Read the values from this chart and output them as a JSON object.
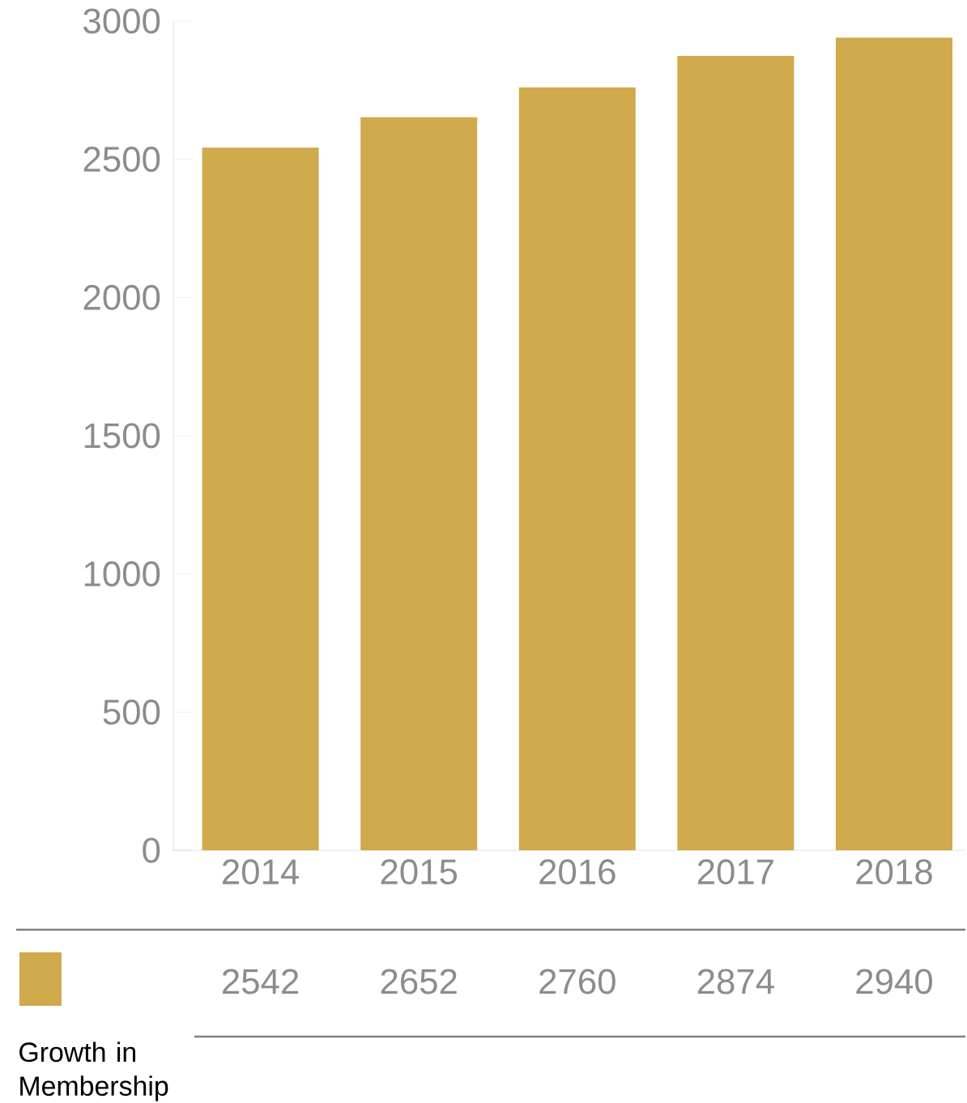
{
  "chart_data": {
    "type": "bar",
    "categories": [
      "2014",
      "2015",
      "2016",
      "2017",
      "2018"
    ],
    "series": [
      {
        "name": "Growth in Membership",
        "color": "#d0a94c",
        "values": [
          2542,
          2652,
          2760,
          2874,
          2940
        ]
      }
    ],
    "ylim": [
      0,
      3000
    ],
    "yticks": [
      0,
      500,
      1000,
      1500,
      2000,
      2500,
      3000
    ],
    "data_labels": true,
    "legend": "bottom left",
    "grid": false
  }
}
